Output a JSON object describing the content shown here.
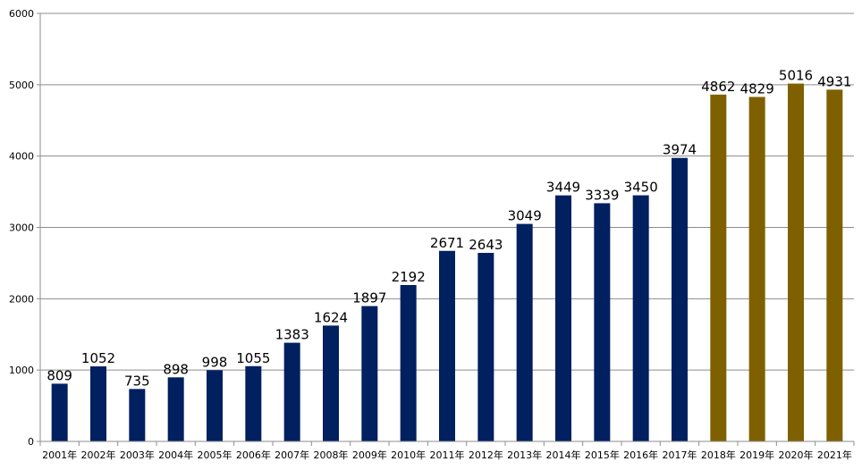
{
  "chart_data": {
    "type": "bar",
    "categories": [
      "2001年",
      "2002年",
      "2003年",
      "2004年",
      "2005年",
      "2006年",
      "2007年",
      "2008年",
      "2009年",
      "2010年",
      "2011年",
      "2012年",
      "2013年",
      "2014年",
      "2015年",
      "2016年",
      "2017年",
      "2018年",
      "2019年",
      "2020年",
      "2021年"
    ],
    "values": [
      809,
      1052,
      735,
      898,
      998,
      1055,
      1383,
      1624,
      1897,
      2192,
      2671,
      2643,
      3049,
      3449,
      3339,
      3450,
      3974,
      4862,
      4829,
      5016,
      4931
    ],
    "bar_colors": [
      "#002060",
      "#002060",
      "#002060",
      "#002060",
      "#002060",
      "#002060",
      "#002060",
      "#002060",
      "#002060",
      "#002060",
      "#002060",
      "#002060",
      "#002060",
      "#002060",
      "#002060",
      "#002060",
      "#002060",
      "#7F6000",
      "#7F6000",
      "#7F6000",
      "#7F6000"
    ],
    "ylim": [
      0,
      6000
    ],
    "yticks": [
      0,
      1000,
      2000,
      3000,
      4000,
      5000,
      6000
    ],
    "grid": true,
    "title": "",
    "xlabel": "",
    "ylabel": "",
    "data_labels": true
  }
}
